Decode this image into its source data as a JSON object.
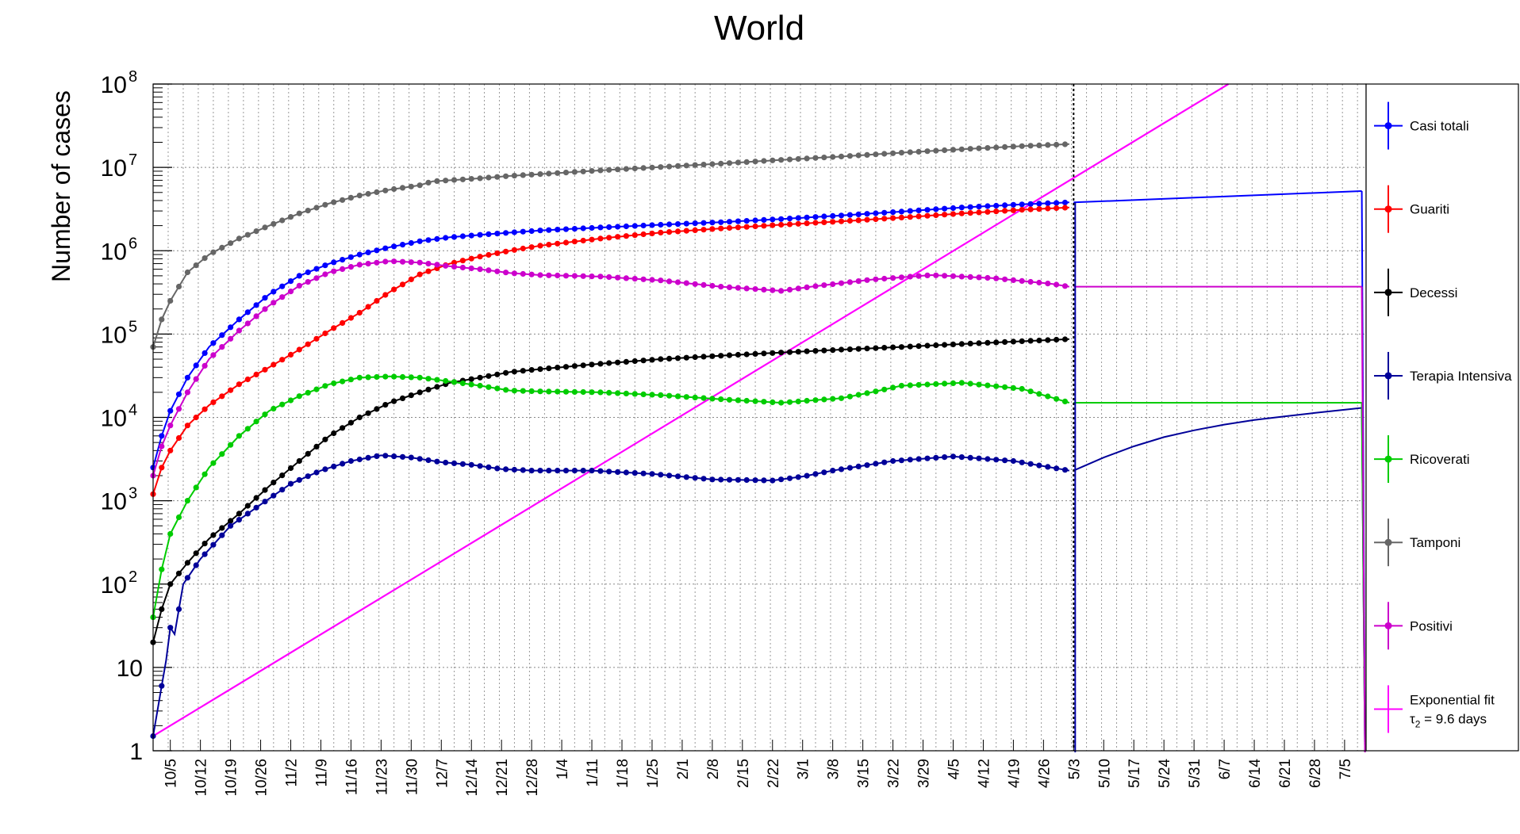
{
  "chart_data": {
    "type": "line",
    "title": "World",
    "ylabel": "Number of cases",
    "xlabel": "",
    "y_scale": "log",
    "ylim": [
      1,
      100000000
    ],
    "y_ticks": [
      {
        "value": 1,
        "base": "1",
        "exp": ""
      },
      {
        "value": 10,
        "base": "10",
        "exp": ""
      },
      {
        "value": 100,
        "base": "10",
        "exp": "2"
      },
      {
        "value": 1000,
        "base": "10",
        "exp": "3"
      },
      {
        "value": 10000,
        "base": "10",
        "exp": "4"
      },
      {
        "value": 100000,
        "base": "10",
        "exp": "5"
      },
      {
        "value": 1000000,
        "base": "10",
        "exp": "6"
      },
      {
        "value": 10000000,
        "base": "10",
        "exp": "7"
      },
      {
        "value": 100000000,
        "base": "10",
        "exp": "8"
      }
    ],
    "x_start": "2020-10-01",
    "x_end": "2021-07-10",
    "x_tick_labels": [
      "10/5",
      "10/12",
      "10/19",
      "10/26",
      "11/2",
      "11/9",
      "11/16",
      "11/23",
      "11/30",
      "12/7",
      "12/14",
      "12/21",
      "12/28",
      "1/4",
      "1/11",
      "1/18",
      "1/25",
      "2/1",
      "2/8",
      "2/15",
      "2/22",
      "3/1",
      "3/8",
      "3/15",
      "3/22",
      "3/29",
      "4/5",
      "4/12",
      "4/19",
      "4/26",
      "5/3",
      "5/10",
      "5/17",
      "5/24",
      "5/31",
      "6/7",
      "6/14",
      "6/21",
      "6/28",
      "7/5"
    ],
    "data_end_label": "5/3",
    "grid": true,
    "legend_position": "right",
    "series": [
      {
        "name": "Casi totali",
        "color": "#0000ff",
        "points": [
          [
            "10/1",
            2500
          ],
          [
            "10/3",
            6000
          ],
          [
            "10/5",
            12000
          ],
          [
            "10/9",
            30000
          ],
          [
            "10/14",
            70000
          ],
          [
            "10/21",
            150000
          ],
          [
            "10/28",
            300000
          ],
          [
            "11/4",
            500000
          ],
          [
            "11/11",
            700000
          ],
          [
            "11/18",
            900000
          ],
          [
            "11/25",
            1100000
          ],
          [
            "12/2",
            1300000
          ],
          [
            "12/9",
            1450000
          ],
          [
            "12/16",
            1550000
          ],
          [
            "12/23",
            1650000
          ],
          [
            "12/30",
            1750000
          ],
          [
            "1/13",
            1900000
          ],
          [
            "1/27",
            2050000
          ],
          [
            "2/10",
            2200000
          ],
          [
            "2/24",
            2400000
          ],
          [
            "3/10",
            2650000
          ],
          [
            "3/24",
            2950000
          ],
          [
            "4/7",
            3300000
          ],
          [
            "4/21",
            3600000
          ],
          [
            "5/2",
            3800000
          ]
        ],
        "projection": [
          [
            "5/3",
            3800000
          ],
          [
            "7/9",
            5200000
          ]
        ]
      },
      {
        "name": "Guariti",
        "color": "#ff0000",
        "points": [
          [
            "10/1",
            1200
          ],
          [
            "10/3",
            2500
          ],
          [
            "10/5",
            4000
          ],
          [
            "10/9",
            8000
          ],
          [
            "10/14",
            14000
          ],
          [
            "10/21",
            25000
          ],
          [
            "10/28",
            40000
          ],
          [
            "11/4",
            65000
          ],
          [
            "11/11",
            110000
          ],
          [
            "11/18",
            180000
          ],
          [
            "11/25",
            320000
          ],
          [
            "12/2",
            520000
          ],
          [
            "12/9",
            700000
          ],
          [
            "12/16",
            850000
          ],
          [
            "12/23",
            1000000
          ],
          [
            "12/30",
            1150000
          ],
          [
            "1/13",
            1400000
          ],
          [
            "1/27",
            1650000
          ],
          [
            "2/10",
            1850000
          ],
          [
            "2/24",
            2050000
          ],
          [
            "3/10",
            2250000
          ],
          [
            "3/24",
            2500000
          ],
          [
            "4/7",
            2800000
          ],
          [
            "4/21",
            3100000
          ],
          [
            "5/2",
            3300000
          ]
        ]
      },
      {
        "name": "Decessi",
        "color": "#000000",
        "points": [
          [
            "10/1",
            20
          ],
          [
            "10/3",
            50
          ],
          [
            "10/5",
            100
          ],
          [
            "10/9",
            180
          ],
          [
            "10/14",
            350
          ],
          [
            "10/21",
            700
          ],
          [
            "10/28",
            1500
          ],
          [
            "11/4",
            3000
          ],
          [
            "11/11",
            6000
          ],
          [
            "11/18",
            10000
          ],
          [
            "11/25",
            15000
          ],
          [
            "12/2",
            20000
          ],
          [
            "12/9",
            26000
          ],
          [
            "12/16",
            30000
          ],
          [
            "12/23",
            35000
          ],
          [
            "12/30",
            38000
          ],
          [
            "1/13",
            44000
          ],
          [
            "1/27",
            50000
          ],
          [
            "2/10",
            55000
          ],
          [
            "2/24",
            60000
          ],
          [
            "3/10",
            65000
          ],
          [
            "3/24",
            70000
          ],
          [
            "4/7",
            76000
          ],
          [
            "4/21",
            82000
          ],
          [
            "5/2",
            87000
          ]
        ]
      },
      {
        "name": "Terapia Intensiva",
        "color": "#000099",
        "points": [
          [
            "10/1",
            1.5
          ],
          [
            "10/2",
            3
          ],
          [
            "10/3",
            6
          ],
          [
            "10/4",
            12
          ],
          [
            "10/5",
            30
          ],
          [
            "10/6",
            25
          ],
          [
            "10/8",
            100
          ],
          [
            "10/12",
            200
          ],
          [
            "10/19",
            500
          ],
          [
            "10/26",
            900
          ],
          [
            "11/2",
            1600
          ],
          [
            "11/9",
            2300
          ],
          [
            "11/16",
            3000
          ],
          [
            "11/23",
            3500
          ],
          [
            "11/30",
            3300
          ],
          [
            "12/7",
            2900
          ],
          [
            "12/14",
            2700
          ],
          [
            "12/21",
            2400
          ],
          [
            "12/28",
            2300
          ],
          [
            "1/11",
            2300
          ],
          [
            "1/25",
            2100
          ],
          [
            "2/8",
            1800
          ],
          [
            "2/22",
            1750
          ],
          [
            "3/1",
            1950
          ],
          [
            "3/8",
            2300
          ],
          [
            "3/22",
            3000
          ],
          [
            "4/5",
            3400
          ],
          [
            "4/19",
            3000
          ],
          [
            "5/2",
            2300
          ]
        ],
        "projection": [
          [
            "5/3",
            2300
          ],
          [
            "5/10",
            3300
          ],
          [
            "5/17",
            4500
          ],
          [
            "5/24",
            5800
          ],
          [
            "5/31",
            7000
          ],
          [
            "6/7",
            8200
          ],
          [
            "6/14",
            9300
          ],
          [
            "6/21",
            10300
          ],
          [
            "6/28",
            11300
          ],
          [
            "7/9",
            13000
          ]
        ]
      },
      {
        "name": "Ricoverati",
        "color": "#00cc00",
        "points": [
          [
            "10/1",
            40
          ],
          [
            "10/3",
            150
          ],
          [
            "10/5",
            400
          ],
          [
            "10/9",
            1000
          ],
          [
            "10/14",
            2500
          ],
          [
            "10/21",
            6000
          ],
          [
            "10/28",
            12000
          ],
          [
            "11/4",
            18000
          ],
          [
            "11/11",
            25000
          ],
          [
            "11/18",
            30000
          ],
          [
            "11/25",
            31000
          ],
          [
            "12/2",
            30000
          ],
          [
            "12/9",
            27000
          ],
          [
            "12/16",
            24000
          ],
          [
            "12/23",
            21000
          ],
          [
            "12/30",
            20500
          ],
          [
            "1/13",
            20000
          ],
          [
            "1/27",
            18500
          ],
          [
            "2/10",
            16500
          ],
          [
            "2/24",
            15000
          ],
          [
            "3/10",
            17000
          ],
          [
            "3/17",
            20000
          ],
          [
            "3/24",
            24000
          ],
          [
            "4/7",
            26000
          ],
          [
            "4/21",
            22000
          ],
          [
            "5/2",
            15000
          ]
        ],
        "projection": [
          [
            "5/3",
            15000
          ],
          [
            "7/9",
            15000
          ]
        ]
      },
      {
        "name": "Tamponi",
        "color": "#666666",
        "points": [
          [
            "10/1",
            70000
          ],
          [
            "10/3",
            150000
          ],
          [
            "10/5",
            250000
          ],
          [
            "10/9",
            550000
          ],
          [
            "10/14",
            900000
          ],
          [
            "10/21",
            1400000
          ],
          [
            "10/28",
            2000000
          ],
          [
            "11/4",
            2800000
          ],
          [
            "11/11",
            3700000
          ],
          [
            "11/18",
            4600000
          ],
          [
            "11/25",
            5400000
          ],
          [
            "12/2",
            6100000
          ],
          [
            "12/5",
            6800000
          ],
          [
            "12/9",
            7000000
          ],
          [
            "12/16",
            7400000
          ],
          [
            "12/23",
            7900000
          ],
          [
            "12/30",
            8300000
          ],
          [
            "1/13",
            9200000
          ],
          [
            "1/27",
            10100000
          ],
          [
            "2/10",
            11100000
          ],
          [
            "2/24",
            12300000
          ],
          [
            "3/10",
            13500000
          ],
          [
            "3/24",
            15000000
          ],
          [
            "4/7",
            16500000
          ],
          [
            "4/21",
            18000000
          ],
          [
            "5/2",
            19000000
          ]
        ]
      },
      {
        "name": "Positivi",
        "color": "#cc00cc",
        "points": [
          [
            "10/1",
            2000
          ],
          [
            "10/3",
            4500
          ],
          [
            "10/5",
            8000
          ],
          [
            "10/9",
            20000
          ],
          [
            "10/14",
            50000
          ],
          [
            "10/21",
            110000
          ],
          [
            "10/28",
            220000
          ],
          [
            "11/4",
            380000
          ],
          [
            "11/11",
            550000
          ],
          [
            "11/18",
            680000
          ],
          [
            "11/25",
            750000
          ],
          [
            "12/2",
            720000
          ],
          [
            "12/9",
            650000
          ],
          [
            "12/16",
            600000
          ],
          [
            "12/23",
            540000
          ],
          [
            "12/30",
            510000
          ],
          [
            "1/13",
            490000
          ],
          [
            "1/27",
            440000
          ],
          [
            "2/10",
            370000
          ],
          [
            "2/24",
            330000
          ],
          [
            "3/3",
            370000
          ],
          [
            "3/17",
            450000
          ],
          [
            "3/31",
            510000
          ],
          [
            "4/14",
            470000
          ],
          [
            "4/28",
            400000
          ],
          [
            "5/2",
            370000
          ]
        ],
        "projection": [
          [
            "5/3",
            370000
          ],
          [
            "7/9",
            370000
          ]
        ]
      }
    ],
    "fit": {
      "name": "Exponential fit",
      "label_line1": "Exponential fit",
      "label_line2": "τ₂ = 9.6 days",
      "tau_symbol": "τ",
      "tau_sub": "2",
      "tau_rest": " = 9.6 days",
      "color": "#ff00ff",
      "start": [
        "10/1",
        1.5
      ],
      "end": [
        "6/8",
        100000000
      ]
    }
  }
}
